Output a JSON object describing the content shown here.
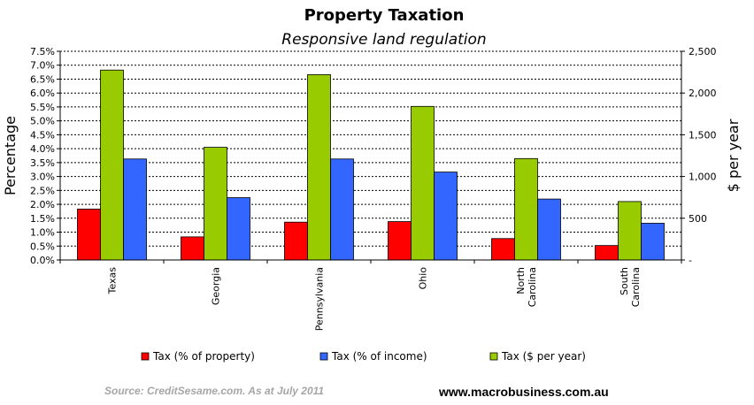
{
  "chart_data": {
    "type": "bar",
    "title": "Property Taxation",
    "subtitle": "Responsive land regulation",
    "categories": [
      [
        "Texas"
      ],
      [
        "Georgia"
      ],
      [
        "Pennsylvania"
      ],
      [
        "Ohio"
      ],
      [
        "North",
        "Carolina"
      ],
      [
        "South",
        "Carolina"
      ]
    ],
    "series": [
      {
        "name": "Tax (% of property)",
        "axis": "left",
        "color": "#ff0000",
        "values": [
          1.83,
          0.83,
          1.36,
          1.38,
          0.77,
          0.52
        ]
      },
      {
        "name": "Tax (% of income)",
        "axis": "left",
        "color": "#3366ff",
        "values": [
          3.63,
          2.24,
          3.63,
          3.16,
          2.19,
          1.32
        ]
      },
      {
        "name": "Tax ($ per year)",
        "axis": "right",
        "color": "#99cc00",
        "values": [
          2275,
          1350,
          2220,
          1840,
          1215,
          700
        ]
      }
    ],
    "ylabel_left": "Percentage",
    "ylabel_right": "$ per year",
    "ylim_left": [
      0,
      7.5
    ],
    "ylim_right": [
      0,
      2500
    ],
    "left_ticks": [
      "0.0%",
      "0.5%",
      "1.0%",
      "1.5%",
      "2.0%",
      "2.5%",
      "3.0%",
      "3.5%",
      "4.0%",
      "4.5%",
      "5.0%",
      "5.5%",
      "6.0%",
      "6.5%",
      "7.0%",
      "7.5%"
    ],
    "right_ticks": [
      "-",
      "500",
      "1,000",
      "1,500",
      "2,000",
      "2,500"
    ],
    "grid": "dashed horizontal",
    "legend": "bottom"
  },
  "footer": {
    "source": "Source: CreditSesame.com. As at July 2011",
    "site": "www.macrobusiness.com.au"
  }
}
